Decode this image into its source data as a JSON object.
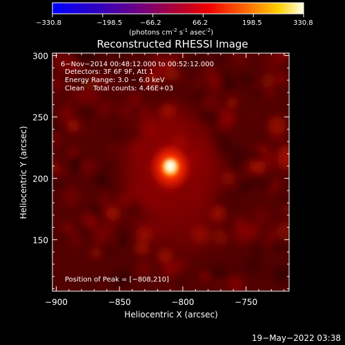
{
  "colorbar": {
    "ticks": [
      "−330.8",
      "−198.5",
      "−66.2",
      "66.2",
      "198.5",
      "330.8"
    ],
    "unit_main": "(photons cm",
    "unit_exp1": "-2",
    "unit_mid": " s",
    "unit_exp2": "-1",
    "unit_end": " asec",
    "unit_exp3": "-2",
    "unit_close": ")"
  },
  "title": "Reconstructed RHESSI Image",
  "info": {
    "line1": "6−Nov−2014 00:48:12.000 to 00:52:12.000",
    "line2": "Detectors: 3F 6F 9F, Att 1",
    "line3": "Energy Range: 3.0 − 6.0 keV",
    "line4": "Clean    Total counts: 4.46E+03"
  },
  "peak_label": "Position of Peak = [−808,210]",
  "footer": "19−May−2022 03:38",
  "chart_data": {
    "type": "heatmap",
    "title": "Reconstructed RHESSI Image",
    "xlabel": "Heliocentric X (arcsec)",
    "ylabel": "Heliocentric Y (arcsec)",
    "xlim": [
      -903,
      -716
    ],
    "ylim": [
      108,
      302
    ],
    "x_ticks": [
      -900,
      -850,
      -800,
      -750
    ],
    "y_ticks": [
      150,
      200,
      250,
      300
    ],
    "x_tick_labels": [
      "−900",
      "−850",
      "−800",
      "−750"
    ],
    "y_tick_labels": [
      "150",
      "200",
      "250",
      "300"
    ],
    "colorbar_range": [
      -330.8,
      330.8
    ],
    "peak": {
      "x": -808,
      "y": 210
    },
    "colors": {
      "background": "#000000",
      "peak": "#ffffff"
    }
  }
}
